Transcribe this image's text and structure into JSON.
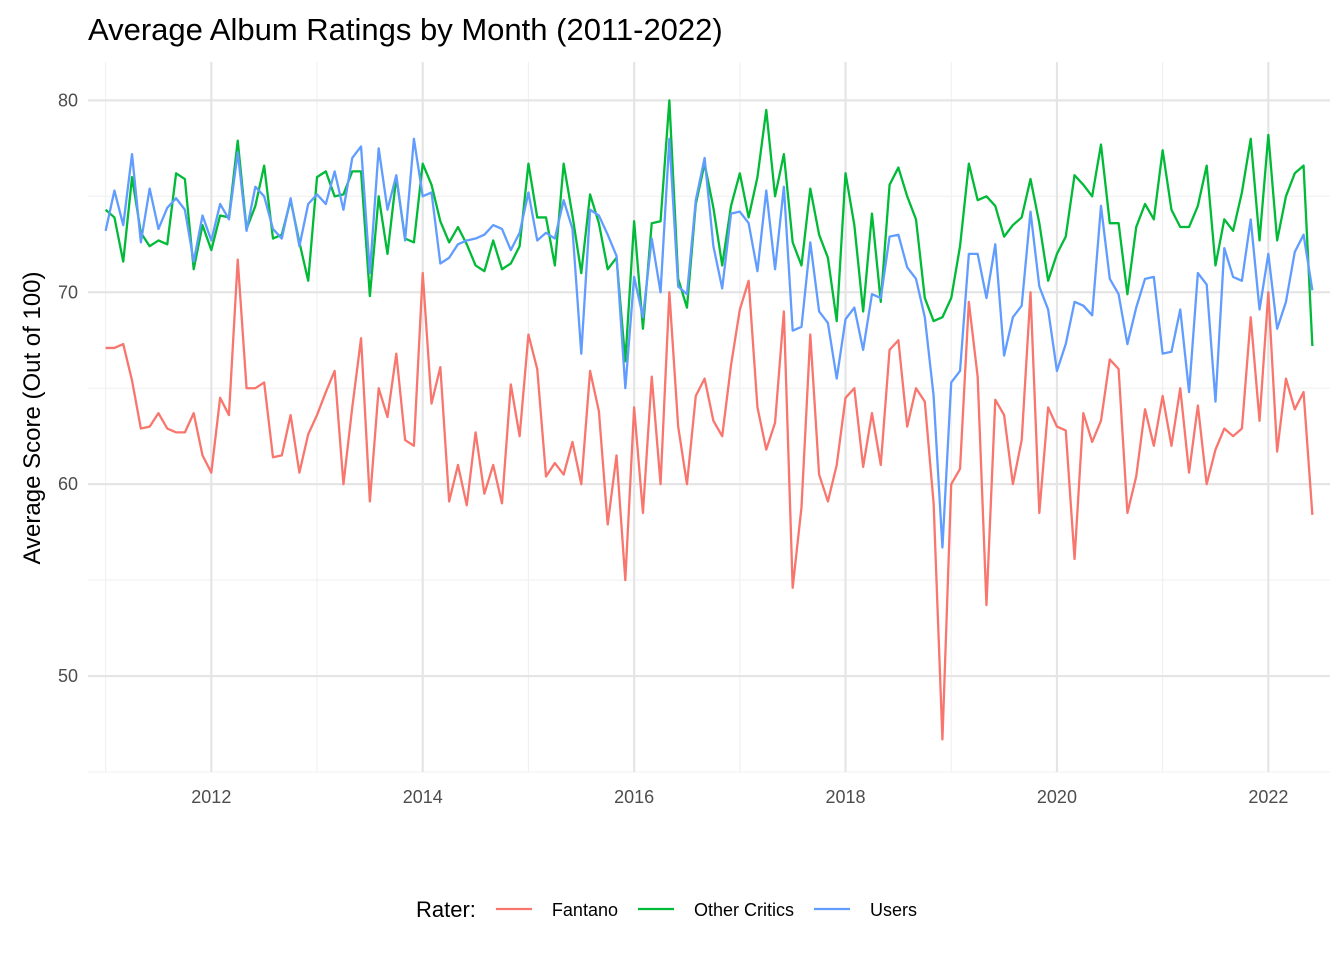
{
  "chart_data": {
    "type": "line",
    "title": "Average Album Ratings by Month (2011-2022)",
    "xlabel": "",
    "ylabel": "Average Score (Out of 100)",
    "x_ticks": [
      "2012",
      "2014",
      "2016",
      "2018",
      "2020",
      "2022"
    ],
    "y_ticks": [
      "50",
      "60",
      "70",
      "80"
    ],
    "xlim": [
      "2010-11",
      "2022-08"
    ],
    "ylim": [
      45,
      82
    ],
    "grid": true,
    "legend": {
      "title": "Rater:",
      "position": "bottom"
    },
    "x": [
      "2011-01",
      "2011-02",
      "2011-03",
      "2011-04",
      "2011-05",
      "2011-06",
      "2011-07",
      "2011-08",
      "2011-09",
      "2011-10",
      "2011-11",
      "2011-12",
      "2012-01",
      "2012-02",
      "2012-03",
      "2012-04",
      "2012-05",
      "2012-06",
      "2012-07",
      "2012-08",
      "2012-09",
      "2012-10",
      "2012-11",
      "2012-12",
      "2013-01",
      "2013-02",
      "2013-03",
      "2013-04",
      "2013-05",
      "2013-06",
      "2013-07",
      "2013-08",
      "2013-09",
      "2013-10",
      "2013-11",
      "2013-12",
      "2014-01",
      "2014-02",
      "2014-03",
      "2014-04",
      "2014-05",
      "2014-06",
      "2014-07",
      "2014-08",
      "2014-09",
      "2014-10",
      "2014-11",
      "2014-12",
      "2015-01",
      "2015-02",
      "2015-03",
      "2015-04",
      "2015-05",
      "2015-06",
      "2015-07",
      "2015-08",
      "2015-09",
      "2015-10",
      "2015-11",
      "2015-12",
      "2016-01",
      "2016-02",
      "2016-03",
      "2016-04",
      "2016-05",
      "2016-06",
      "2016-07",
      "2016-08",
      "2016-09",
      "2016-10",
      "2016-11",
      "2016-12",
      "2017-01",
      "2017-02",
      "2017-03",
      "2017-04",
      "2017-05",
      "2017-06",
      "2017-07",
      "2017-08",
      "2017-09",
      "2017-10",
      "2017-11",
      "2017-12",
      "2018-01",
      "2018-02",
      "2018-03",
      "2018-04",
      "2018-05",
      "2018-06",
      "2018-07",
      "2018-08",
      "2018-09",
      "2018-10",
      "2018-11",
      "2018-12",
      "2019-01",
      "2019-02",
      "2019-03",
      "2019-04",
      "2019-05",
      "2019-06",
      "2019-07",
      "2019-08",
      "2019-09",
      "2019-10",
      "2019-11",
      "2019-12",
      "2020-01",
      "2020-02",
      "2020-03",
      "2020-04",
      "2020-05",
      "2020-06",
      "2020-07",
      "2020-08",
      "2020-09",
      "2020-10",
      "2020-11",
      "2020-12",
      "2021-01",
      "2021-02",
      "2021-03",
      "2021-04",
      "2021-05",
      "2021-06",
      "2021-07",
      "2021-08",
      "2021-09",
      "2021-10",
      "2021-11",
      "2021-12",
      "2022-01",
      "2022-02",
      "2022-03",
      "2022-04",
      "2022-05",
      "2022-06"
    ],
    "series": [
      {
        "name": "Fantano",
        "color": "#F8766D",
        "values": [
          67.1,
          67.1,
          67.3,
          65.4,
          62.9,
          63.0,
          63.7,
          62.9,
          62.7,
          62.7,
          63.7,
          61.5,
          60.6,
          64.5,
          63.6,
          71.7,
          65.0,
          65.0,
          65.3,
          61.4,
          61.5,
          63.6,
          60.6,
          62.6,
          63.6,
          64.8,
          65.9,
          60.0,
          64.0,
          67.6,
          59.1,
          65.0,
          63.5,
          66.8,
          62.3,
          62.0,
          71.0,
          64.2,
          66.1,
          59.1,
          61.0,
          58.9,
          62.7,
          59.5,
          61.0,
          59.0,
          65.2,
          62.5,
          67.8,
          66.0,
          60.4,
          61.1,
          60.5,
          62.2,
          60.0,
          65.9,
          63.8,
          57.9,
          61.5,
          55.0,
          64.0,
          58.5,
          65.6,
          60.0,
          70.0,
          63.0,
          60.0,
          64.6,
          65.5,
          63.3,
          62.5,
          66.2,
          69.1,
          70.6,
          64.0,
          61.8,
          63.2,
          69.0,
          54.6,
          58.8,
          67.8,
          60.5,
          59.1,
          61.0,
          64.5,
          65.0,
          60.9,
          63.7,
          61.0,
          67.0,
          67.5,
          63.0,
          65.0,
          64.3,
          59.0,
          46.7,
          60.0,
          60.8,
          69.5,
          65.6,
          53.7,
          64.4,
          63.6,
          60.0,
          62.3,
          70.0,
          58.5,
          64.0,
          63.0,
          62.8,
          56.1,
          63.7,
          62.2,
          63.3,
          66.5,
          66.0,
          58.5,
          60.4,
          63.9,
          62.0,
          64.6,
          62.0,
          65.0,
          60.6,
          64.1,
          60.0,
          61.8,
          62.9,
          62.5,
          62.9,
          68.7,
          63.3,
          70.0,
          61.7,
          65.5,
          63.9,
          64.8,
          58.4
        ]
      },
      {
        "name": "Other Critics",
        "color": "#00BA38",
        "values": [
          74.3,
          73.9,
          71.6,
          76.0,
          73.1,
          72.4,
          72.7,
          72.5,
          76.2,
          75.9,
          71.2,
          73.5,
          72.2,
          74.0,
          73.9,
          77.9,
          73.3,
          74.5,
          76.6,
          72.8,
          73.0,
          74.8,
          72.6,
          70.6,
          76.0,
          76.3,
          75.0,
          75.1,
          76.3,
          76.3,
          69.8,
          75.0,
          72.0,
          76.0,
          72.8,
          72.6,
          76.7,
          75.6,
          73.7,
          72.6,
          73.4,
          72.5,
          71.4,
          71.1,
          72.7,
          71.2,
          71.5,
          72.4,
          76.7,
          73.9,
          73.9,
          71.4,
          76.7,
          74.0,
          71.0,
          75.1,
          73.6,
          71.2,
          71.8,
          66.4,
          73.7,
          68.1,
          73.6,
          73.7,
          80.0,
          70.7,
          69.2,
          74.6,
          76.7,
          74.4,
          71.4,
          74.5,
          76.2,
          73.9,
          76.0,
          79.5,
          75.0,
          77.2,
          72.6,
          71.4,
          75.4,
          73.0,
          71.8,
          68.5,
          76.2,
          73.5,
          69.0,
          74.1,
          69.5,
          75.6,
          76.5,
          75.0,
          73.8,
          69.7,
          68.5,
          68.7,
          69.7,
          72.4,
          76.7,
          74.8,
          75.0,
          74.5,
          72.9,
          73.5,
          73.9,
          75.9,
          73.6,
          70.6,
          72.0,
          72.9,
          76.1,
          75.6,
          75.0,
          77.7,
          73.6,
          73.6,
          69.9,
          73.4,
          74.6,
          73.8,
          77.4,
          74.3,
          73.4,
          73.4,
          74.5,
          76.6,
          71.4,
          73.8,
          73.2,
          75.2,
          78.0,
          72.7,
          78.2,
          72.7,
          75.0,
          76.2,
          76.6,
          67.2
        ]
      },
      {
        "name": "Users",
        "color": "#619CFF",
        "values": [
          73.2,
          75.3,
          73.5,
          77.2,
          72.6,
          75.4,
          73.3,
          74.4,
          74.9,
          74.3,
          71.6,
          74.0,
          72.7,
          74.6,
          73.8,
          77.3,
          73.2,
          75.5,
          75.0,
          73.3,
          72.8,
          74.9,
          72.4,
          74.6,
          75.1,
          74.6,
          76.3,
          74.3,
          77.0,
          77.6,
          71.0,
          77.5,
          74.3,
          76.1,
          72.7,
          78.0,
          75.0,
          75.2,
          71.5,
          71.8,
          72.5,
          72.7,
          72.8,
          73.0,
          73.5,
          73.3,
          72.2,
          73.1,
          75.2,
          72.7,
          73.1,
          72.8,
          74.8,
          73.3,
          66.8,
          74.3,
          74.0,
          73.0,
          71.9,
          65.0,
          70.8,
          68.7,
          72.8,
          70.0,
          78.0,
          70.3,
          69.9,
          74.8,
          77.0,
          72.4,
          70.2,
          74.1,
          74.2,
          73.6,
          71.1,
          75.3,
          71.2,
          75.5,
          68.0,
          68.2,
          72.6,
          69.0,
          68.4,
          65.5,
          68.6,
          69.2,
          67.0,
          69.9,
          69.7,
          72.9,
          73.0,
          71.3,
          70.7,
          68.7,
          64.6,
          56.7,
          65.3,
          65.9,
          72.0,
          72.0,
          69.7,
          72.5,
          66.7,
          68.7,
          69.3,
          74.2,
          70.3,
          69.1,
          65.9,
          67.3,
          69.5,
          69.3,
          68.8,
          74.5,
          70.7,
          69.9,
          67.3,
          69.2,
          70.7,
          70.8,
          66.8,
          66.9,
          69.1,
          64.8,
          71.0,
          70.4,
          64.3,
          72.3,
          70.8,
          70.6,
          73.8,
          69.1,
          72.0,
          68.1,
          69.5,
          72.1,
          73.0,
          70.1
        ]
      }
    ]
  }
}
